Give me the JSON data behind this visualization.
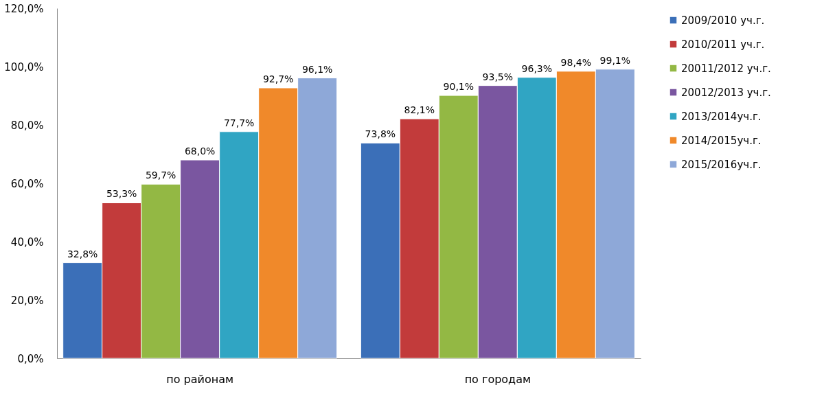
{
  "chart_data": {
    "type": "bar",
    "categories": [
      "по районам",
      "по городам"
    ],
    "series": [
      {
        "name": "2009/2010 уч.г.",
        "color": "#3b6fb8",
        "values": [
          32.8,
          73.8
        ],
        "value_labels": [
          "32,8%",
          "73,8%"
        ]
      },
      {
        "name": "2010/2011 уч.г.",
        "color": "#c23b3b",
        "values": [
          53.3,
          82.1
        ],
        "value_labels": [
          "53,3%",
          "82,1%"
        ]
      },
      {
        "name": "20011/2012 уч.г.",
        "color": "#93b844",
        "values": [
          59.7,
          90.1
        ],
        "value_labels": [
          "59,7%",
          "90,1%"
        ]
      },
      {
        "name": "20012/2013 уч.г.",
        "color": "#7a56a0",
        "values": [
          68.0,
          93.5
        ],
        "value_labels": [
          "68,0%",
          "93,5%"
        ]
      },
      {
        "name": "2013/2014уч.г.",
        "color": "#30a5c3",
        "values": [
          77.7,
          96.3
        ],
        "value_labels": [
          "77,7%",
          "96,3%"
        ]
      },
      {
        "name": "2014/2015уч.г.",
        "color": "#f0892a",
        "values": [
          92.7,
          98.4
        ],
        "value_labels": [
          "92,7%",
          "98,4%"
        ]
      },
      {
        "name": "2015/2016уч.г.",
        "color": "#8ea8d8",
        "values": [
          96.1,
          99.1
        ],
        "value_labels": [
          "96,1%",
          "99,1%"
        ]
      }
    ],
    "ylim": [
      0,
      120
    ],
    "yticks": [
      {
        "value": 0,
        "label": "0,0%"
      },
      {
        "value": 20,
        "label": "20,0%"
      },
      {
        "value": 40,
        "label": "40,0%"
      },
      {
        "value": 60,
        "label": "60,0%"
      },
      {
        "value": 80,
        "label": "80,0%"
      },
      {
        "value": 100,
        "label": "100,0%"
      },
      {
        "value": 120,
        "label": "120,0%"
      }
    ],
    "grid": false,
    "legend": "right"
  }
}
